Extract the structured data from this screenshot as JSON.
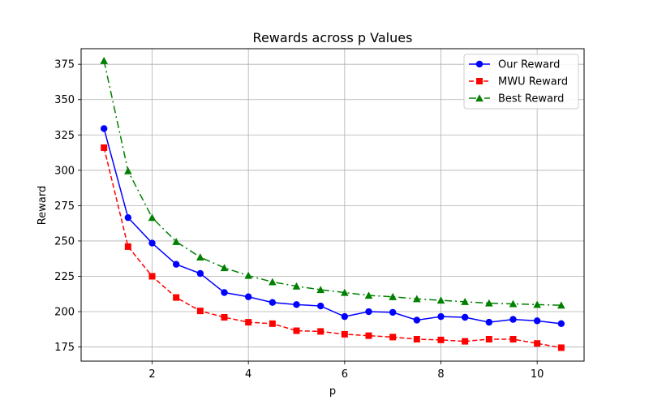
{
  "chart_data": {
    "type": "line",
    "title": "Rewards across p Values",
    "xlabel": "p",
    "ylabel": "Reward",
    "xlim": [
      0.525,
      10.975
    ],
    "ylim": [
      165,
      386
    ],
    "xticks": [
      2,
      4,
      6,
      8,
      10
    ],
    "yticks": [
      175,
      200,
      225,
      250,
      275,
      300,
      325,
      350,
      375
    ],
    "grid": true,
    "legend_position": "top-right",
    "x": [
      1.0,
      1.5,
      2.0,
      2.5,
      3.0,
      3.5,
      4.0,
      4.5,
      5.0,
      5.5,
      6.0,
      6.5,
      7.0,
      7.5,
      8.0,
      8.5,
      9.0,
      9.5,
      10.0,
      10.5
    ],
    "series": [
      {
        "name": "Our Reward",
        "color": "#0000ff",
        "marker": "circle",
        "linestyle": "solid",
        "values": [
          329.5,
          266.5,
          248.5,
          233.5,
          227.0,
          213.5,
          210.5,
          206.5,
          205.0,
          204.0,
          196.5,
          200.0,
          199.5,
          194.0,
          196.5,
          196.0,
          192.5,
          194.5,
          193.5,
          191.5
        ]
      },
      {
        "name": "MWU Reward",
        "color": "#ff0000",
        "marker": "square",
        "linestyle": "dashed",
        "values": [
          316.0,
          246.0,
          225.0,
          210.0,
          200.5,
          196.0,
          192.5,
          191.5,
          186.5,
          186.0,
          184.0,
          183.0,
          182.0,
          180.5,
          180.0,
          179.0,
          180.5,
          180.5,
          177.5,
          174.5
        ]
      },
      {
        "name": "Best Reward",
        "color": "#008000",
        "marker": "triangle",
        "linestyle": "dashdot",
        "values": [
          377.5,
          299.5,
          266.5,
          249.5,
          238.5,
          231.0,
          225.5,
          221.0,
          218.0,
          215.5,
          213.5,
          211.5,
          210.5,
          209.0,
          208.0,
          207.0,
          206.0,
          205.5,
          205.0,
          204.5
        ]
      }
    ]
  }
}
